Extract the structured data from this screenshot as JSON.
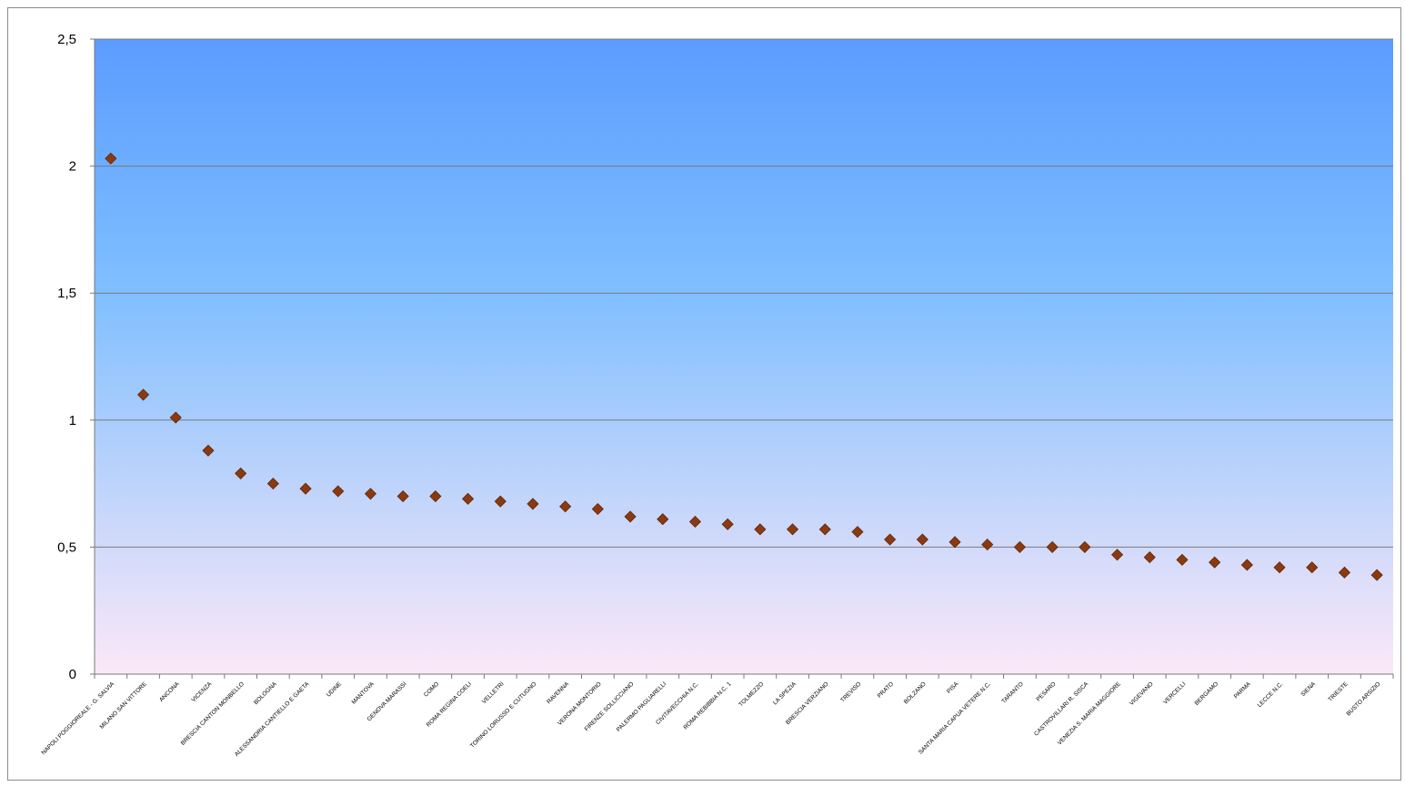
{
  "chart_data": {
    "type": "scatter",
    "title": "",
    "xlabel": "",
    "ylabel": "",
    "ylim": [
      0,
      2.5
    ],
    "y_ticks": [
      "0",
      "0,5",
      "1",
      "1,5",
      "2",
      "2,5"
    ],
    "y_tick_values": [
      0,
      0.5,
      1,
      1.5,
      2,
      2.5
    ],
    "grid": "horizontal",
    "legend": "none",
    "marker": "diamond",
    "marker_color": "#8b3a0f",
    "background_gradient": [
      "#5b9cff",
      "#80bfff",
      "#fbe8f8"
    ],
    "categories": [
      "NAPOLI POGGIOREALE - G. SALVIA",
      "MILANO SAN VITTORE",
      "ANCONA",
      "VICENZA",
      "BRESCIA CANTON MONBELLO",
      "BOLOGNA",
      "ALESSANDRIA CANTIELLO E GAETA",
      "UDINE",
      "MANTOVA",
      "GENOVA MARASSI",
      "COMO",
      "ROMA REGINA COELI",
      "VELLETRI",
      "TORINO LORUSSO E CUTUGNO",
      "RAVENNA",
      "VERONA MONTORIO",
      "FIRENZE SOLLICCIANO",
      "PALERMO PAGLIARELLI",
      "CIVITAVECCHIA N.C.",
      "ROMA REBIBBIA N.C. 1",
      "TOLMEZZO",
      "LA SPEZIA",
      "BRESCIA VERZIANO",
      "TREVISO",
      "PRATO",
      "BOLZANO",
      "PISA",
      "SANTA MARIA CAPUA VETERE N.C.",
      "TARANTO",
      "PESARO",
      "CASTROVILLARI R. SISCA",
      "VENEZIA S. MARIA MAGGIORE",
      "VIGEVANO",
      "VERCELLI",
      "BERGAMO",
      "PARMA",
      "LECCE N.C.",
      "SIENA",
      "TRIESTE",
      "BUSTO ARSIZIO"
    ],
    "values": [
      2.03,
      1.1,
      1.01,
      0.88,
      0.79,
      0.75,
      0.73,
      0.72,
      0.71,
      0.7,
      0.7,
      0.69,
      0.68,
      0.67,
      0.66,
      0.65,
      0.62,
      0.61,
      0.6,
      0.59,
      0.57,
      0.57,
      0.57,
      0.56,
      0.53,
      0.53,
      0.52,
      0.51,
      0.5,
      0.5,
      0.5,
      0.47,
      0.46,
      0.45,
      0.44,
      0.43,
      0.42,
      0.42,
      0.4,
      0.39
    ]
  }
}
